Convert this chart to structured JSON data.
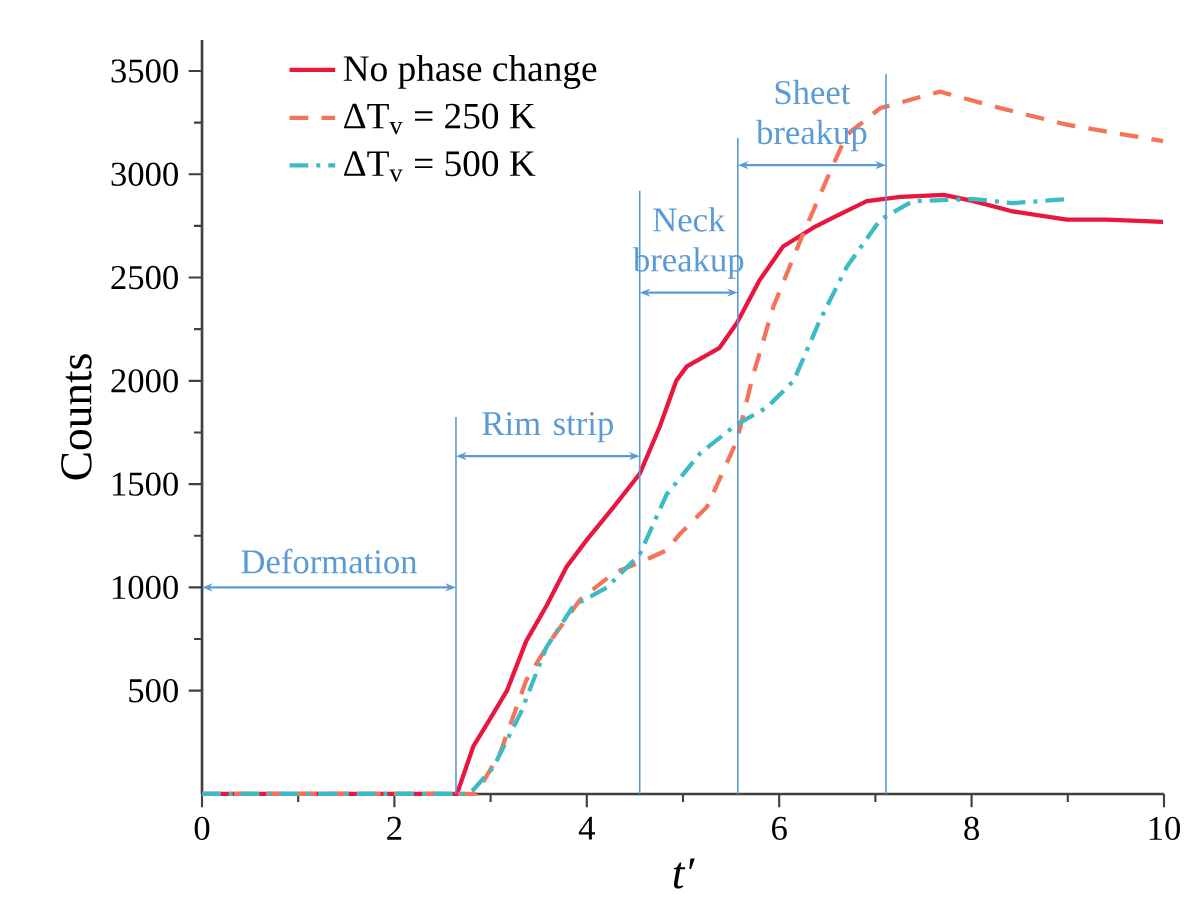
{
  "chart_data": {
    "type": "line",
    "xlabel": "t′",
    "ylabel": "Counts",
    "xlim": [
      0,
      10
    ],
    "ylim": [
      0,
      3650
    ],
    "xticks": [
      0,
      2,
      4,
      6,
      8,
      10
    ],
    "yticks": [
      500,
      1000,
      1500,
      2000,
      2500,
      3000,
      3500
    ],
    "legend": "top left",
    "grid": false,
    "series": [
      {
        "name": "No phase change",
        "color": "#e8173f",
        "line_style": "solid",
        "x": [
          0,
          2.65,
          2.82,
          2.99,
          3.17,
          3.37,
          3.58,
          3.79,
          4.0,
          4.28,
          4.55,
          4.76,
          4.93,
          5.04,
          5.38,
          5.56,
          5.8,
          6.04,
          6.35,
          6.56,
          6.91,
          7.26,
          7.71,
          8.02,
          8.43,
          8.99,
          9.4,
          9.99
        ],
        "values": [
          0,
          0,
          230,
          360,
          500,
          740,
          910,
          1100,
          1230,
          1390,
          1550,
          1780,
          2000,
          2070,
          2160,
          2280,
          2490,
          2650,
          2740,
          2790,
          2870,
          2890,
          2900,
          2870,
          2820,
          2780,
          2780,
          2770
        ]
      },
      {
        "name": "ΔT$_{v}$ = 250 K",
        "color": "#f4735a",
        "line_style": "dashed",
        "x": [
          0,
          2.85,
          3.1,
          3.37,
          3.62,
          3.93,
          4.28,
          4.55,
          4.83,
          4.97,
          5.25,
          5.56,
          5.73,
          5.94,
          6.22,
          6.49,
          6.7,
          7.05,
          7.67,
          8.3,
          8.99,
          9.99
        ],
        "values": [
          0,
          0,
          200,
          550,
          740,
          940,
          1070,
          1120,
          1180,
          1260,
          1390,
          1710,
          2030,
          2360,
          2680,
          2970,
          3190,
          3320,
          3400,
          3320,
          3240,
          3160
        ]
      },
      {
        "name": "ΔT$_{v}$ = 500 K",
        "color": "#3bbcc4",
        "line_style": "dashdot",
        "x": [
          0,
          2.75,
          2.82,
          3.03,
          3.31,
          3.58,
          3.86,
          4.21,
          4.55,
          4.83,
          5.18,
          5.56,
          5.87,
          6.15,
          6.42,
          6.7,
          7.05,
          7.39,
          8.02,
          8.43,
          8.99
        ],
        "values": [
          0,
          0,
          20,
          130,
          390,
          710,
          910,
          1000,
          1160,
          1450,
          1650,
          1790,
          1870,
          2000,
          2290,
          2550,
          2780,
          2870,
          2880,
          2860,
          2880
        ]
      }
    ],
    "ref_lines": [
      {
        "axis": "x",
        "value": 2.64,
        "color": "#5b9bd5"
      },
      {
        "axis": "x",
        "value": 4.55,
        "color": "#5b9bd5"
      },
      {
        "axis": "x",
        "value": 5.57,
        "color": "#5b9bd5"
      },
      {
        "axis": "x",
        "value": 7.11,
        "color": "#5b9bd5"
      }
    ],
    "annotations": [
      "Deformation",
      "Rim strip",
      "Neck breakup",
      "Sheet breakup"
    ]
  }
}
